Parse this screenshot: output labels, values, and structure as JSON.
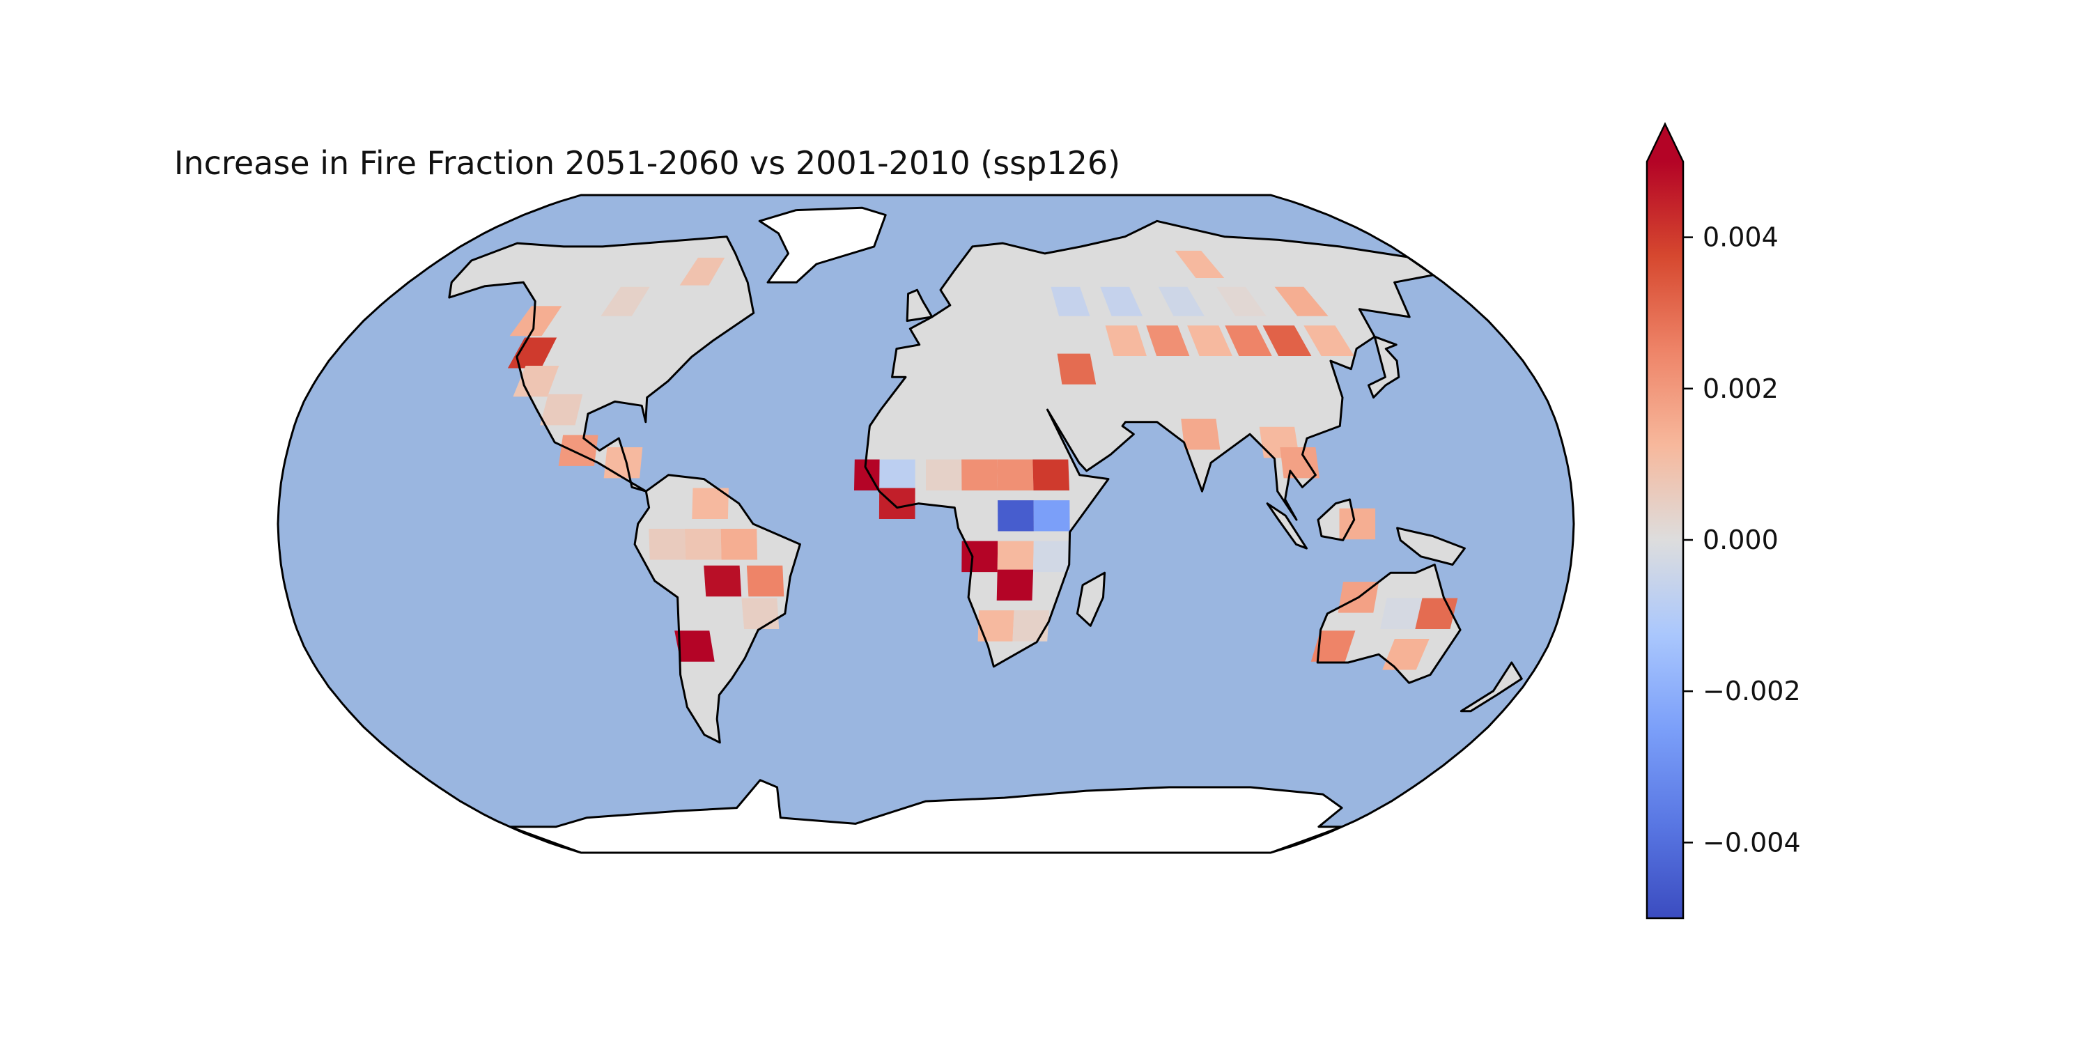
{
  "figure": {
    "title": "Increase in Fire Fraction 2051-2060 vs 2001-2010 (ssp126)"
  },
  "colors": {
    "ocean": "#9ab6e0",
    "land_zero": "#dcdcdc",
    "ice": "#ffffff",
    "coast": "#000000"
  },
  "chart_data": {
    "type": "heatmap",
    "projection": "Robinson",
    "title": "Increase in Fire Fraction 2051-2060 vs 2001-2010 (ssp126)",
    "colormap": "coolwarm",
    "colorbar": {
      "vmin": -0.005,
      "vmax": 0.005,
      "extend": "max",
      "ticks": [
        0.004,
        0.002,
        0.0,
        -0.002,
        -0.004
      ],
      "tick_labels": [
        "0.004",
        "0.002",
        "0.000",
        "−0.002",
        "−0.004"
      ]
    },
    "cells": [
      {
        "lon": -125,
        "lat": 50,
        "value": 0.0015
      },
      {
        "lon": -120,
        "lat": 42,
        "value": 0.004
      },
      {
        "lon": -115,
        "lat": 35,
        "value": 0.0008
      },
      {
        "lon": -105,
        "lat": 28,
        "value": 0.0006
      },
      {
        "lon": -98,
        "lat": 18,
        "value": 0.002
      },
      {
        "lon": -85,
        "lat": 15,
        "value": 0.0012
      },
      {
        "lon": -80,
        "lat": 63,
        "value": 0.0009
      },
      {
        "lon": -100,
        "lat": 55,
        "value": 0.0004
      },
      {
        "lon": -60,
        "lat": 5,
        "value": 0.0012
      },
      {
        "lon": -72,
        "lat": -5,
        "value": 0.0006
      },
      {
        "lon": -62,
        "lat": -5,
        "value": 0.0008
      },
      {
        "lon": -52,
        "lat": -5,
        "value": 0.0015
      },
      {
        "lon": -57,
        "lat": -14,
        "value": 0.0048
      },
      {
        "lon": -45,
        "lat": -14,
        "value": 0.0025
      },
      {
        "lon": -47,
        "lat": -22,
        "value": 0.0005
      },
      {
        "lon": -67,
        "lat": -30,
        "value": 0.005
      },
      {
        "lon": -15,
        "lat": 12,
        "value": 0.005
      },
      {
        "lon": -8,
        "lat": 12,
        "value": -0.0008
      },
      {
        "lon": 5,
        "lat": 12,
        "value": 0.0004
      },
      {
        "lon": 15,
        "lat": 12,
        "value": 0.0022
      },
      {
        "lon": 25,
        "lat": 12,
        "value": 0.0022
      },
      {
        "lon": 35,
        "lat": 12,
        "value": 0.004
      },
      {
        "lon": -8,
        "lat": 5,
        "value": 0.0045
      },
      {
        "lon": 25,
        "lat": 2,
        "value": -0.0045
      },
      {
        "lon": 35,
        "lat": 2,
        "value": -0.0025
      },
      {
        "lon": 15,
        "lat": -8,
        "value": 0.005
      },
      {
        "lon": 25,
        "lat": -8,
        "value": 0.0012
      },
      {
        "lon": 35,
        "lat": -8,
        "value": -0.0003
      },
      {
        "lon": 25,
        "lat": -15,
        "value": 0.005
      },
      {
        "lon": 20,
        "lat": -25,
        "value": 0.0012
      },
      {
        "lon": 30,
        "lat": -25,
        "value": 0.0004
      },
      {
        "lon": 48,
        "lat": 55,
        "value": -0.0006
      },
      {
        "lon": 65,
        "lat": 55,
        "value": -0.0006
      },
      {
        "lon": 85,
        "lat": 55,
        "value": -0.0004
      },
      {
        "lon": 105,
        "lat": 55,
        "value": 0.0002
      },
      {
        "lon": 125,
        "lat": 55,
        "value": 0.0015
      },
      {
        "lon": 100,
        "lat": 65,
        "value": 0.0012
      },
      {
        "lon": 45,
        "lat": 38,
        "value": 0.003
      },
      {
        "lon": 62,
        "lat": 45,
        "value": 0.0012
      },
      {
        "lon": 75,
        "lat": 45,
        "value": 0.0022
      },
      {
        "lon": 88,
        "lat": 45,
        "value": 0.0012
      },
      {
        "lon": 100,
        "lat": 45,
        "value": 0.0025
      },
      {
        "lon": 112,
        "lat": 45,
        "value": 0.0032
      },
      {
        "lon": 125,
        "lat": 45,
        "value": 0.0012
      },
      {
        "lon": 78,
        "lat": 22,
        "value": 0.0016
      },
      {
        "lon": 100,
        "lat": 20,
        "value": 0.0012
      },
      {
        "lon": 105,
        "lat": 15,
        "value": 0.0018
      },
      {
        "lon": 120,
        "lat": 0,
        "value": 0.0015
      },
      {
        "lon": 122,
        "lat": -18,
        "value": 0.0018
      },
      {
        "lon": 135,
        "lat": -22,
        "value": -0.0002
      },
      {
        "lon": 145,
        "lat": -22,
        "value": 0.003
      },
      {
        "lon": 118,
        "lat": -30,
        "value": 0.0025
      },
      {
        "lon": 140,
        "lat": -32,
        "value": 0.0014
      }
    ]
  }
}
